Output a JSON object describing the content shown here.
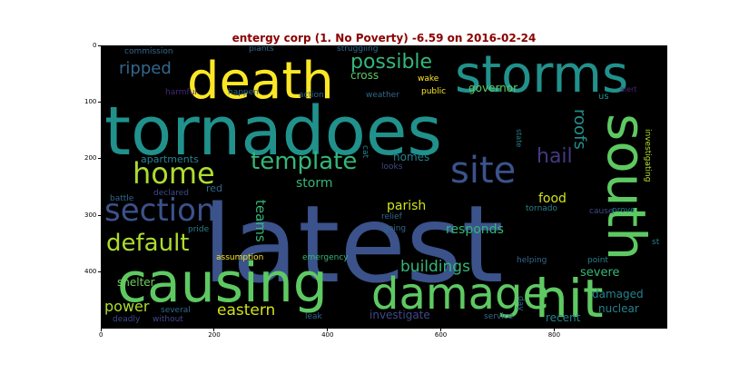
{
  "figure": {
    "title": "entergy corp (1. No Poverty) -6.59 on 2016-02-24",
    "title_color": "#8b0000",
    "background": "#000000"
  },
  "chart_data": {
    "type": "wordcloud",
    "x_ticks": [
      "0",
      "200",
      "400",
      "600",
      "800"
    ],
    "y_ticks": [
      "0",
      "100",
      "200",
      "300",
      "400"
    ],
    "xlim": [
      0,
      1000
    ],
    "ylim": [
      500,
      0
    ],
    "words": [
      {
        "text": "latest",
        "color": "#3b528b"
      },
      {
        "text": "tornadoes",
        "color": "#21918c"
      },
      {
        "text": "causing",
        "color": "#5ec962"
      },
      {
        "text": "death",
        "color": "#fde725"
      },
      {
        "text": "storms",
        "color": "#21918c"
      },
      {
        "text": "south",
        "color": "#5ec962"
      },
      {
        "text": "hit",
        "color": "#5ec962"
      },
      {
        "text": "damage",
        "color": "#5ec962"
      },
      {
        "text": "site",
        "color": "#3b528b"
      },
      {
        "text": "section",
        "color": "#3b528b"
      },
      {
        "text": "home",
        "color": "#addc30"
      },
      {
        "text": "template",
        "color": "#35b779"
      },
      {
        "text": "default",
        "color": "#addc30"
      },
      {
        "text": "possible",
        "color": "#35b779"
      },
      {
        "text": "hail",
        "color": "#443983"
      },
      {
        "text": "ripped",
        "color": "#31688e"
      },
      {
        "text": "roofs",
        "color": "#21918c"
      },
      {
        "text": "buildings",
        "color": "#35b779"
      },
      {
        "text": "eastern",
        "color": "#d2e21b"
      },
      {
        "text": "power",
        "color": "#addc30"
      },
      {
        "text": "teams",
        "color": "#35b779"
      },
      {
        "text": "storm",
        "color": "#35b779"
      },
      {
        "text": "responds",
        "color": "#35b779"
      },
      {
        "text": "parish",
        "color": "#d2e21b"
      },
      {
        "text": "homes",
        "color": "#26828e"
      },
      {
        "text": "food",
        "color": "#d2e21b"
      },
      {
        "text": "severe",
        "color": "#35b779"
      },
      {
        "text": "damaged",
        "color": "#26828e"
      },
      {
        "text": "nuclear",
        "color": "#26828e"
      },
      {
        "text": "recent",
        "color": "#26828e"
      },
      {
        "text": "investigate",
        "color": "#3e4a89"
      },
      {
        "text": "governor",
        "color": "#5ec962"
      },
      {
        "text": "cross",
        "color": "#5ec962"
      },
      {
        "text": "shelter",
        "color": "#6ece58"
      },
      {
        "text": "apartments",
        "color": "#26828e"
      },
      {
        "text": "red",
        "color": "#31688e"
      },
      {
        "text": "commission",
        "color": "#31688e"
      },
      {
        "text": "plants",
        "color": "#31688e"
      },
      {
        "text": "struggling",
        "color": "#31688e"
      },
      {
        "text": "harmful",
        "color": "#482878"
      },
      {
        "text": "happen",
        "color": "#31688e"
      },
      {
        "text": "action",
        "color": "#31688e"
      },
      {
        "text": "weather",
        "color": "#31688e"
      },
      {
        "text": "public",
        "color": "#fde725"
      },
      {
        "text": "wake",
        "color": "#fde725"
      },
      {
        "text": "us",
        "color": "#21918c"
      },
      {
        "text": "alert",
        "color": "#482878"
      },
      {
        "text": "state",
        "color": "#26828e"
      },
      {
        "text": "cat",
        "color": "#26828e"
      },
      {
        "text": "looks",
        "color": "#3e4a89"
      },
      {
        "text": "investigating",
        "color": "#b5de2b"
      },
      {
        "text": "prove",
        "color": "#26828e"
      },
      {
        "text": "cause",
        "color": "#3e4a89"
      },
      {
        "text": "tornado",
        "color": "#26828e"
      },
      {
        "text": "relief",
        "color": "#31688e"
      },
      {
        "text": "going",
        "color": "#31688e"
      },
      {
        "text": "battle",
        "color": "#31688e"
      },
      {
        "text": "declared",
        "color": "#3e4a89"
      },
      {
        "text": "pride",
        "color": "#26828e"
      },
      {
        "text": "st",
        "color": "#26828e"
      },
      {
        "text": "assumption",
        "color": "#fde725"
      },
      {
        "text": "emergency",
        "color": "#35b779"
      },
      {
        "text": "helping",
        "color": "#31688e"
      },
      {
        "text": "point",
        "color": "#26828e"
      },
      {
        "text": "several",
        "color": "#31688e"
      },
      {
        "text": "deadly",
        "color": "#3e4a89"
      },
      {
        "text": "without",
        "color": "#3e4a89"
      },
      {
        "text": "leak",
        "color": "#31688e"
      },
      {
        "text": "service",
        "color": "#31688e"
      },
      {
        "text": "day",
        "color": "#31688e"
      }
    ]
  }
}
